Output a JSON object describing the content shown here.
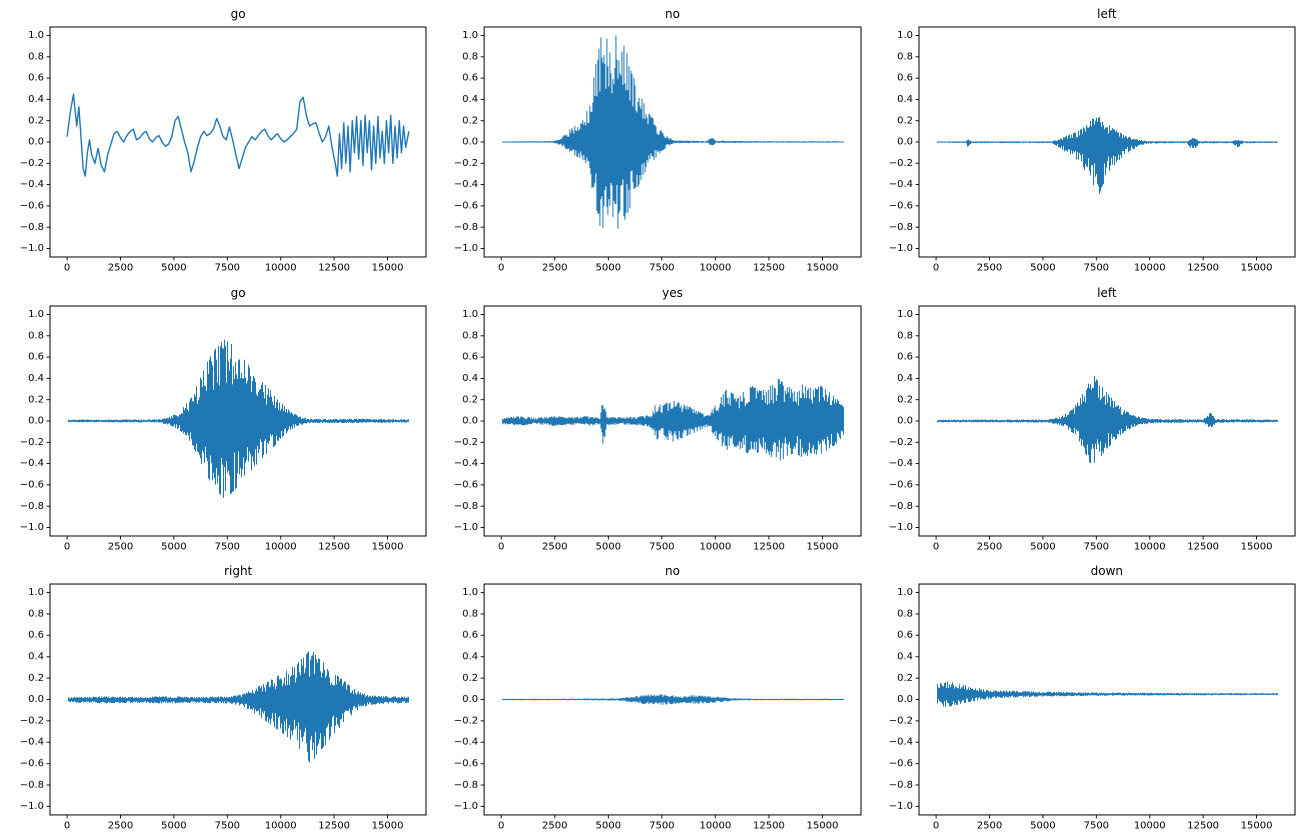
{
  "figure": {
    "background": "#ffffff",
    "line_color": "#1f77b4",
    "axis_color": "#000000",
    "tick_font_size": 10,
    "title_font_size": 12
  },
  "axes": {
    "xlim": [
      -800,
      16800
    ],
    "ylim": [
      -1.08,
      1.08
    ],
    "x_ticks": [
      0,
      2500,
      5000,
      7500,
      10000,
      12500,
      15000
    ],
    "y_ticks": [
      1.0,
      0.8,
      0.6,
      0.4,
      0.2,
      0.0,
      -0.2,
      -0.4,
      -0.6,
      -0.8,
      -1.0
    ]
  },
  "chart_data": [
    {
      "type": "line",
      "title": "go",
      "style": "smoothline",
      "points": [
        [
          0,
          0.05
        ],
        [
          150,
          0.28
        ],
        [
          300,
          0.45
        ],
        [
          450,
          0.15
        ],
        [
          550,
          0.33
        ],
        [
          650,
          0.05
        ],
        [
          750,
          -0.25
        ],
        [
          850,
          -0.32
        ],
        [
          950,
          -0.1
        ],
        [
          1050,
          0.02
        ],
        [
          1150,
          -0.12
        ],
        [
          1300,
          -0.2
        ],
        [
          1450,
          -0.06
        ],
        [
          1600,
          -0.22
        ],
        [
          1750,
          -0.28
        ],
        [
          1900,
          -0.12
        ],
        [
          2050,
          -0.02
        ],
        [
          2200,
          0.08
        ],
        [
          2350,
          0.1
        ],
        [
          2500,
          0.04
        ],
        [
          2650,
          0.0
        ],
        [
          2800,
          0.06
        ],
        [
          2950,
          0.1
        ],
        [
          3100,
          0.12
        ],
        [
          3250,
          0.02
        ],
        [
          3400,
          0.04
        ],
        [
          3550,
          0.08
        ],
        [
          3700,
          0.1
        ],
        [
          3850,
          0.03
        ],
        [
          4000,
          0.0
        ],
        [
          4150,
          0.04
        ],
        [
          4300,
          0.06
        ],
        [
          4450,
          0.0
        ],
        [
          4600,
          -0.04
        ],
        [
          4750,
          -0.02
        ],
        [
          4900,
          0.05
        ],
        [
          5050,
          0.2
        ],
        [
          5200,
          0.24
        ],
        [
          5350,
          0.12
        ],
        [
          5500,
          0.0
        ],
        [
          5650,
          -0.1
        ],
        [
          5800,
          -0.28
        ],
        [
          5950,
          -0.18
        ],
        [
          6100,
          -0.05
        ],
        [
          6250,
          0.05
        ],
        [
          6400,
          0.1
        ],
        [
          6550,
          0.06
        ],
        [
          6700,
          0.08
        ],
        [
          6850,
          0.12
        ],
        [
          7000,
          0.22
        ],
        [
          7150,
          0.15
        ],
        [
          7300,
          0.05
        ],
        [
          7450,
          0.02
        ],
        [
          7600,
          0.14
        ],
        [
          7750,
          0.02
        ],
        [
          7900,
          -0.12
        ],
        [
          8050,
          -0.25
        ],
        [
          8200,
          -0.15
        ],
        [
          8350,
          -0.05
        ],
        [
          8500,
          0.0
        ],
        [
          8650,
          0.05
        ],
        [
          8800,
          0.02
        ],
        [
          8950,
          0.06
        ],
        [
          9100,
          0.1
        ],
        [
          9250,
          0.12
        ],
        [
          9400,
          0.06
        ],
        [
          9550,
          0.02
        ],
        [
          9700,
          0.05
        ],
        [
          9850,
          0.08
        ],
        [
          10000,
          0.03
        ],
        [
          10150,
          0.0
        ],
        [
          10300,
          0.02
        ],
        [
          10450,
          0.05
        ],
        [
          10600,
          0.08
        ],
        [
          10750,
          0.12
        ],
        [
          10900,
          0.38
        ],
        [
          11050,
          0.42
        ],
        [
          11200,
          0.25
        ],
        [
          11350,
          0.15
        ],
        [
          11500,
          0.17
        ],
        [
          11650,
          0.18
        ],
        [
          11800,
          0.08
        ],
        [
          11950,
          0.0
        ],
        [
          12100,
          0.05
        ],
        [
          12250,
          0.15
        ],
        [
          12400,
          -0.05
        ],
        [
          12550,
          -0.2
        ],
        [
          12650,
          -0.32
        ],
        [
          12750,
          0.08
        ],
        [
          12850,
          -0.25
        ],
        [
          12950,
          0.18
        ],
        [
          13050,
          -0.2
        ],
        [
          13150,
          0.15
        ],
        [
          13250,
          -0.28
        ],
        [
          13350,
          0.2
        ],
        [
          13450,
          -0.1
        ],
        [
          13550,
          0.24
        ],
        [
          13650,
          -0.16
        ],
        [
          13750,
          0.2
        ],
        [
          13850,
          -0.22
        ],
        [
          13950,
          0.25
        ],
        [
          14050,
          -0.1
        ],
        [
          14150,
          0.2
        ],
        [
          14250,
          -0.26
        ],
        [
          14350,
          0.15
        ],
        [
          14450,
          -0.2
        ],
        [
          14550,
          0.24
        ],
        [
          14650,
          -0.15
        ],
        [
          14750,
          0.1
        ],
        [
          14850,
          -0.2
        ],
        [
          14950,
          0.2
        ],
        [
          15050,
          -0.1
        ],
        [
          15150,
          0.25
        ],
        [
          15250,
          -0.2
        ],
        [
          15350,
          0.15
        ],
        [
          15450,
          -0.15
        ],
        [
          15550,
          0.2
        ],
        [
          15650,
          -0.1
        ],
        [
          15750,
          0.15
        ],
        [
          15850,
          -0.05
        ],
        [
          16000,
          0.1
        ]
      ]
    },
    {
      "type": "line",
      "title": "no",
      "style": "wave",
      "seed": 101,
      "offset": 0,
      "pos_scale": 1.0,
      "neg_scale": 0.82,
      "envelope": [
        [
          0,
          0.006
        ],
        [
          2400,
          0.008
        ],
        [
          2800,
          0.04
        ],
        [
          3200,
          0.12
        ],
        [
          3600,
          0.18
        ],
        [
          4000,
          0.3
        ],
        [
          4300,
          0.62
        ],
        [
          4600,
          0.98
        ],
        [
          5000,
          1.0
        ],
        [
          5400,
          1.0
        ],
        [
          5700,
          0.92
        ],
        [
          6000,
          0.75
        ],
        [
          6300,
          0.55
        ],
        [
          6600,
          0.38
        ],
        [
          6900,
          0.27
        ],
        [
          7200,
          0.18
        ],
        [
          7500,
          0.1
        ],
        [
          7800,
          0.04
        ],
        [
          8100,
          0.015
        ],
        [
          9600,
          0.01
        ],
        [
          9800,
          0.05
        ],
        [
          10000,
          0.012
        ],
        [
          12000,
          0.008
        ],
        [
          16000,
          0.007
        ]
      ]
    },
    {
      "type": "line",
      "title": "left",
      "style": "wave",
      "seed": 202,
      "offset": 0,
      "pos_scale": 0.55,
      "neg_scale": 1.0,
      "envelope": [
        [
          0,
          0.007
        ],
        [
          1350,
          0.01
        ],
        [
          1500,
          0.06
        ],
        [
          1650,
          0.01
        ],
        [
          5400,
          0.01
        ],
        [
          5800,
          0.06
        ],
        [
          6200,
          0.12
        ],
        [
          6600,
          0.18
        ],
        [
          7000,
          0.28
        ],
        [
          7300,
          0.42
        ],
        [
          7600,
          0.5
        ],
        [
          7900,
          0.35
        ],
        [
          8300,
          0.22
        ],
        [
          8700,
          0.14
        ],
        [
          9100,
          0.08
        ],
        [
          9500,
          0.04
        ],
        [
          9900,
          0.015
        ],
        [
          11700,
          0.01
        ],
        [
          12000,
          0.08
        ],
        [
          12300,
          0.015
        ],
        [
          13800,
          0.01
        ],
        [
          14100,
          0.05
        ],
        [
          14400,
          0.012
        ],
        [
          16000,
          0.008
        ]
      ]
    },
    {
      "type": "line",
      "title": "go",
      "style": "wave",
      "seed": 303,
      "offset": 0,
      "pos_scale": 1.0,
      "neg_scale": 0.94,
      "envelope": [
        [
          0,
          0.012
        ],
        [
          4200,
          0.015
        ],
        [
          4800,
          0.04
        ],
        [
          5300,
          0.1
        ],
        [
          5800,
          0.22
        ],
        [
          6200,
          0.4
        ],
        [
          6600,
          0.58
        ],
        [
          7000,
          0.7
        ],
        [
          7300,
          0.77
        ],
        [
          7700,
          0.72
        ],
        [
          8100,
          0.62
        ],
        [
          8500,
          0.52
        ],
        [
          8900,
          0.42
        ],
        [
          9300,
          0.33
        ],
        [
          9700,
          0.25
        ],
        [
          10100,
          0.15
        ],
        [
          10500,
          0.08
        ],
        [
          10900,
          0.04
        ],
        [
          11300,
          0.02
        ],
        [
          12200,
          0.018
        ],
        [
          13500,
          0.022
        ],
        [
          14500,
          0.018
        ],
        [
          16000,
          0.015
        ]
      ]
    },
    {
      "type": "line",
      "title": "yes",
      "style": "wave",
      "seed": 404,
      "offset": 0,
      "pos_scale": 1.0,
      "neg_scale": 1.0,
      "envelope": [
        [
          0,
          0.03
        ],
        [
          800,
          0.045
        ],
        [
          1600,
          0.03
        ],
        [
          2400,
          0.045
        ],
        [
          3200,
          0.035
        ],
        [
          4000,
          0.045
        ],
        [
          4600,
          0.035
        ],
        [
          4750,
          0.26
        ],
        [
          4900,
          0.04
        ],
        [
          5600,
          0.035
        ],
        [
          6400,
          0.04
        ],
        [
          7000,
          0.06
        ],
        [
          7200,
          0.18
        ],
        [
          7500,
          0.14
        ],
        [
          7900,
          0.2
        ],
        [
          8300,
          0.17
        ],
        [
          8700,
          0.14
        ],
        [
          9100,
          0.1
        ],
        [
          9500,
          0.06
        ],
        [
          9800,
          0.1
        ],
        [
          10100,
          0.18
        ],
        [
          10500,
          0.3
        ],
        [
          10900,
          0.24
        ],
        [
          11300,
          0.28
        ],
        [
          11700,
          0.33
        ],
        [
          12100,
          0.28
        ],
        [
          12500,
          0.32
        ],
        [
          12900,
          0.4
        ],
        [
          13300,
          0.33
        ],
        [
          13700,
          0.3
        ],
        [
          14100,
          0.35
        ],
        [
          14500,
          0.3
        ],
        [
          14900,
          0.33
        ],
        [
          15300,
          0.27
        ],
        [
          15700,
          0.2
        ],
        [
          16000,
          0.12
        ]
      ]
    },
    {
      "type": "line",
      "title": "left",
      "style": "wave",
      "seed": 505,
      "offset": 0,
      "pos_scale": 1.0,
      "neg_scale": 1.0,
      "envelope": [
        [
          0,
          0.012
        ],
        [
          5200,
          0.014
        ],
        [
          5800,
          0.04
        ],
        [
          6300,
          0.1
        ],
        [
          6700,
          0.2
        ],
        [
          7000,
          0.32
        ],
        [
          7300,
          0.45
        ],
        [
          7600,
          0.36
        ],
        [
          8000,
          0.26
        ],
        [
          8400,
          0.17
        ],
        [
          8800,
          0.1
        ],
        [
          9200,
          0.06
        ],
        [
          9600,
          0.035
        ],
        [
          10000,
          0.02
        ],
        [
          12500,
          0.014
        ],
        [
          12800,
          0.08
        ],
        [
          13100,
          0.018
        ],
        [
          16000,
          0.012
        ]
      ]
    },
    {
      "type": "line",
      "title": "right",
      "style": "wave",
      "seed": 606,
      "offset": 0,
      "pos_scale": 0.82,
      "neg_scale": 1.05,
      "envelope": [
        [
          0,
          0.025
        ],
        [
          1500,
          0.035
        ],
        [
          3000,
          0.03
        ],
        [
          4500,
          0.035
        ],
        [
          6000,
          0.03
        ],
        [
          7500,
          0.035
        ],
        [
          8200,
          0.06
        ],
        [
          8700,
          0.12
        ],
        [
          9200,
          0.18
        ],
        [
          9700,
          0.25
        ],
        [
          10200,
          0.32
        ],
        [
          10700,
          0.4
        ],
        [
          11100,
          0.5
        ],
        [
          11400,
          0.58
        ],
        [
          11700,
          0.48
        ],
        [
          12100,
          0.4
        ],
        [
          12500,
          0.3
        ],
        [
          12900,
          0.22
        ],
        [
          13300,
          0.14
        ],
        [
          13700,
          0.08
        ],
        [
          14100,
          0.05
        ],
        [
          14600,
          0.04
        ],
        [
          15200,
          0.035
        ],
        [
          16000,
          0.03
        ]
      ]
    },
    {
      "type": "line",
      "title": "no",
      "style": "wave",
      "seed": 707,
      "offset": 0,
      "pos_scale": 1.0,
      "neg_scale": 1.0,
      "envelope": [
        [
          0,
          0.006
        ],
        [
          3000,
          0.007
        ],
        [
          5400,
          0.01
        ],
        [
          6000,
          0.025
        ],
        [
          6500,
          0.04
        ],
        [
          7000,
          0.045
        ],
        [
          7500,
          0.05
        ],
        [
          8000,
          0.04
        ],
        [
          8500,
          0.032
        ],
        [
          9000,
          0.04
        ],
        [
          9500,
          0.035
        ],
        [
          10000,
          0.028
        ],
        [
          10500,
          0.018
        ],
        [
          11000,
          0.01
        ],
        [
          12000,
          0.007
        ],
        [
          16000,
          0.006
        ]
      ]
    },
    {
      "type": "line",
      "title": "down",
      "style": "wave",
      "seed": 808,
      "offset": 0.05,
      "pos_scale": 1.0,
      "neg_scale": 1.0,
      "envelope": [
        [
          0,
          0.09
        ],
        [
          400,
          0.12
        ],
        [
          800,
          0.11
        ],
        [
          1200,
          0.09
        ],
        [
          1600,
          0.07
        ],
        [
          2000,
          0.055
        ],
        [
          2600,
          0.04
        ],
        [
          3400,
          0.032
        ],
        [
          4400,
          0.026
        ],
        [
          5600,
          0.02
        ],
        [
          7000,
          0.016
        ],
        [
          9000,
          0.013
        ],
        [
          11000,
          0.011
        ],
        [
          13000,
          0.01
        ],
        [
          16000,
          0.009
        ]
      ]
    }
  ]
}
